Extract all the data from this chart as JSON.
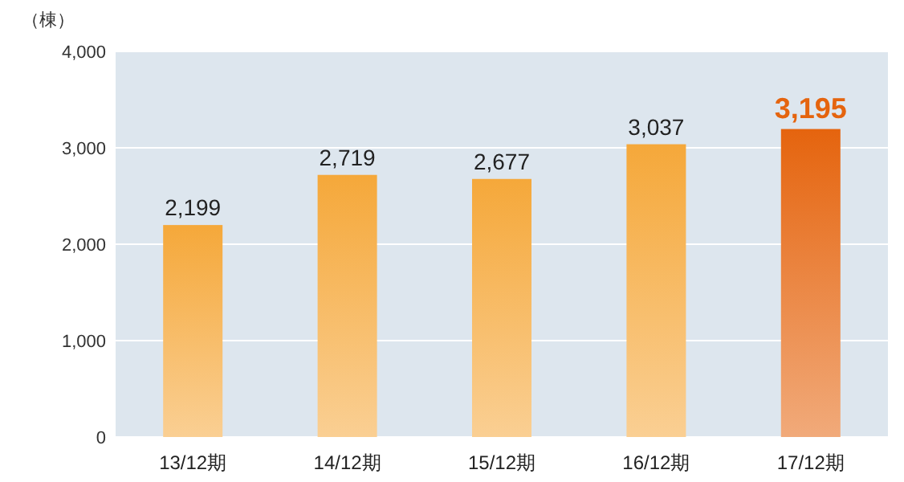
{
  "chart_data": {
    "type": "bar",
    "ylabel": "（棟）",
    "categories": [
      "13/12期",
      "14/12期",
      "15/12期",
      "16/12期",
      "17/12期"
    ],
    "values": [
      2199,
      2719,
      2677,
      3037,
      3195
    ],
    "value_labels": [
      "2,199",
      "2,719",
      "2,677",
      "3,037",
      "3,195"
    ],
    "colors": [
      "#f5a83a",
      "#f5a83a",
      "#f5a83a",
      "#f5a83a",
      "#e5640e"
    ],
    "ylim": [
      0,
      4000
    ],
    "yticks": [
      0,
      {
        "value": 1000,
        "label": "1,000"
      },
      {
        "value": 2000,
        "label": "2,000"
      },
      {
        "value": 3000,
        "label": "3,000"
      },
      {
        "value": 4000,
        "label": "4,000"
      }
    ],
    "grid": "y"
  }
}
